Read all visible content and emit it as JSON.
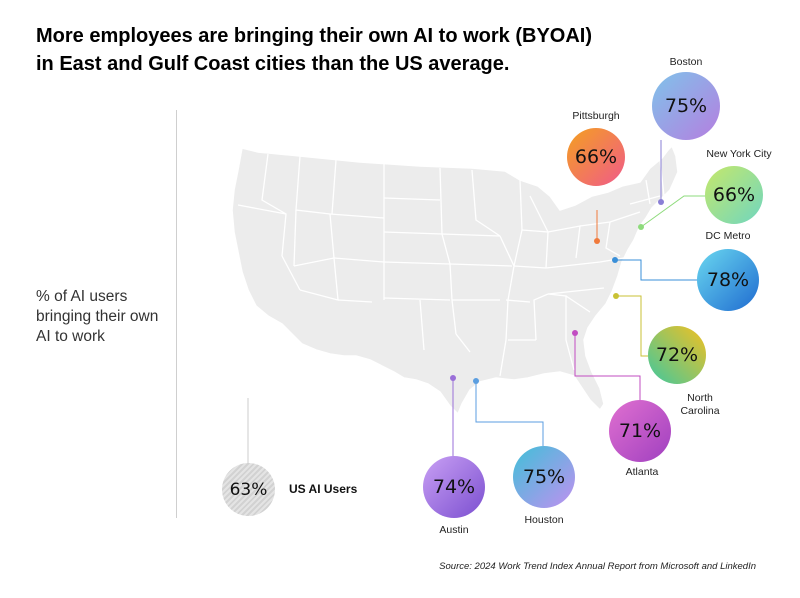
{
  "title": {
    "line1": "More employees are bringing their own AI to work (BYOAI)",
    "line2": "in East and Gulf Coast cities than the US average."
  },
  "side_label": "% of AI users bringing their own AI to work",
  "us_average": {
    "value": "63%",
    "label": "US AI Users"
  },
  "source": "Source: 2024 Work Trend Index Annual Report from Microsoft and LinkedIn",
  "cities": {
    "boston": {
      "name": "Boston",
      "value": "75%",
      "pin_color": "#8a7fd6"
    },
    "pittsburgh": {
      "name": "Pittsburgh",
      "value": "66%",
      "pin_color": "#f07a3c"
    },
    "nyc": {
      "name": "New York City",
      "value": "66%",
      "pin_color": "#8edb7c"
    },
    "dc": {
      "name": "DC Metro",
      "value": "78%",
      "pin_color": "#3a8fd8"
    },
    "nc": {
      "name_line1": "North",
      "name_line2": "Carolina",
      "value": "72%",
      "pin_color": "#c9c235"
    },
    "atlanta": {
      "name": "Atlanta",
      "value": "71%",
      "pin_color": "#c24cc2"
    },
    "houston": {
      "name": "Houston",
      "value": "75%",
      "pin_color": "#5b9ee0"
    },
    "austin": {
      "name": "Austin",
      "value": "74%",
      "pin_color": "#9a6fd8"
    }
  }
}
